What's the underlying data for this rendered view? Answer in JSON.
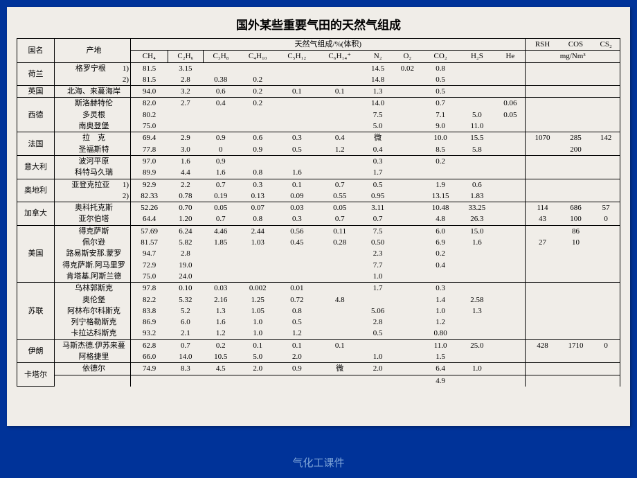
{
  "title": "国外某些重要气田的天然气组成",
  "footer": "气化工课件",
  "hdr": {
    "country": "国名",
    "field": "产地",
    "group": "天然气组成/%(体积)",
    "CH4": "CH₄",
    "C2H6": "C₂H₆",
    "C3H8": "C₃H₈",
    "C4H10": "C₄H₁₀",
    "C5H12": "C₅H₁₂",
    "C6H14": "C₆H₁₄⁺",
    "N2": "N₂",
    "O2": "O₂",
    "CO2": "CO₂",
    "H2S": "H₂S",
    "He": "He",
    "RSH": "RSH",
    "COS": "COS",
    "CS2": "CS₂",
    "mg": "mg/Nm³"
  },
  "rows": [
    {
      "country": "荷兰",
      "field": "格罗宁根",
      "note": "1)",
      "ch4": "81.5",
      "c2": "3.15",
      "c3": "",
      "c4": "",
      "c5": "",
      "c6": "",
      "n2": "14.5",
      "o2": "0.02",
      "co2": "0.8",
      "h2s": "",
      "he": "",
      "rsh": "",
      "cos": "",
      "cs2": ""
    },
    {
      "country": "",
      "field": "",
      "note": "2)",
      "ch4": "81.5",
      "c2": "2.8",
      "c3": "0.38",
      "c4": "0.2",
      "c5": "",
      "c6": "",
      "n2": "14.8",
      "o2": "",
      "co2": "0.5",
      "h2s": "",
      "he": "",
      "rsh": "",
      "cos": "",
      "cs2": "",
      "sep": true
    },
    {
      "country": "英国",
      "field": "北海、来蔓海岸",
      "ch4": "94.0",
      "c2": "3.2",
      "c3": "0.6",
      "c4": "0.2",
      "c5": "0.1",
      "c6": "0.1",
      "n2": "1.3",
      "o2": "",
      "co2": "0.5",
      "h2s": "",
      "he": "",
      "rsh": "",
      "cos": "",
      "cs2": "",
      "sep": true
    },
    {
      "country": "西德",
      "field": "斯洛赫特伦",
      "ch4": "82.0",
      "c2": "2.7",
      "c3": "0.4",
      "c4": "0.2",
      "c5": "",
      "c6": "",
      "n2": "14.0",
      "o2": "",
      "co2": "0.7",
      "h2s": "",
      "he": "0.06",
      "rsh": "",
      "cos": "",
      "cs2": ""
    },
    {
      "country": "",
      "field": "多灵根",
      "ch4": "80.2",
      "c2": "",
      "c3": "",
      "c4": "",
      "c5": "",
      "c6": "",
      "n2": "7.5",
      "o2": "",
      "co2": "7.1",
      "h2s": "5.0",
      "he": "0.05",
      "rsh": "",
      "cos": "",
      "cs2": ""
    },
    {
      "country": "",
      "field": "南奥登堡",
      "ch4": "75.0",
      "c2": "",
      "c3": "",
      "c4": "",
      "c5": "",
      "c6": "",
      "n2": "5.0",
      "o2": "",
      "co2": "9.0",
      "h2s": "11.0",
      "he": "",
      "rsh": "",
      "cos": "",
      "cs2": "",
      "sep": true
    },
    {
      "country": "法国",
      "field": "拉　克",
      "ch4": "69.4",
      "c2": "2.9",
      "c3": "0.9",
      "c4": "0.6",
      "c5": "0.3",
      "c6": "0.4",
      "n2": "微",
      "o2": "",
      "co2": "10.0",
      "h2s": "15.5",
      "he": "",
      "rsh": "1070",
      "cos": "285",
      "cs2": "142"
    },
    {
      "country": "",
      "field": "圣福斯特",
      "ch4": "77.8",
      "c2": "3.0",
      "c3": "0",
      "c4": "0.9",
      "c5": "0.5",
      "c6": "1.2",
      "n2": "0.4",
      "o2": "",
      "co2": "8.5",
      "h2s": "5.8",
      "he": "",
      "rsh": "",
      "cos": "200",
      "cs2": "",
      "sep": true
    },
    {
      "country": "意大利",
      "field": "波河平原",
      "ch4": "97.0",
      "c2": "1.6",
      "c3": "0.9",
      "c4": "",
      "c5": "",
      "c6": "",
      "n2": "0.3",
      "o2": "",
      "co2": "0.2",
      "h2s": "",
      "he": "",
      "rsh": "",
      "cos": "",
      "cs2": ""
    },
    {
      "country": "",
      "field": "科特马久瑞",
      "ch4": "89.9",
      "c2": "4.4",
      "c3": "1.6",
      "c4": "0.8",
      "c5": "1.6",
      "c6": "",
      "n2": "1.7",
      "o2": "",
      "co2": "",
      "h2s": "",
      "he": "",
      "rsh": "",
      "cos": "",
      "cs2": "",
      "sep": true
    },
    {
      "country": "奥地利",
      "field": "亚登克拉亚",
      "note": "1)",
      "ch4": "92.9",
      "c2": "2.2",
      "c3": "0.7",
      "c4": "0.3",
      "c5": "0.1",
      "c6": "0.7",
      "n2": "0.5",
      "o2": "",
      "co2": "1.9",
      "h2s": "0.6",
      "he": "",
      "rsh": "",
      "cos": "",
      "cs2": ""
    },
    {
      "country": "",
      "field": "",
      "note": "2)",
      "ch4": "82.33",
      "c2": "0.78",
      "c3": "0.19",
      "c4": "0.13",
      "c5": "0.09",
      "c6": "0.55",
      "n2": "0.95",
      "o2": "",
      "co2": "13.15",
      "h2s": "1.83",
      "he": "",
      "rsh": "",
      "cos": "",
      "cs2": "",
      "sep": true
    },
    {
      "country": "加拿大",
      "field": "奥科托克斯",
      "ch4": "52.26",
      "c2": "0.70",
      "c3": "0.05",
      "c4": "0.07",
      "c5": "0.03",
      "c6": "0.05",
      "n2": "3.11",
      "o2": "",
      "co2": "10.48",
      "h2s": "33.25",
      "he": "",
      "rsh": "114",
      "cos": "686",
      "cs2": "57"
    },
    {
      "country": "",
      "field": "亚尔伯塔",
      "ch4": "64.4",
      "c2": "1.20",
      "c3": "0.7",
      "c4": "0.8",
      "c5": "0.3",
      "c6": "0.7",
      "n2": "0.7",
      "o2": "",
      "co2": "4.8",
      "h2s": "26.3",
      "he": "",
      "rsh": "43",
      "cos": "100",
      "cs2": "0",
      "sep": true
    },
    {
      "country": "美国",
      "field": "得克萨斯",
      "ch4": "57.69",
      "c2": "6.24",
      "c3": "4.46",
      "c4": "2.44",
      "c5": "0.56",
      "c6": "0.11",
      "n2": "7.5",
      "o2": "",
      "co2": "6.0",
      "h2s": "15.0",
      "he": "",
      "rsh": "",
      "cos": "86",
      "cs2": ""
    },
    {
      "country": "",
      "field": "佩尔逊",
      "ch4": "81.57",
      "c2": "5.82",
      "c3": "1.85",
      "c4": "1.03",
      "c5": "0.45",
      "c6": "0.28",
      "n2": "0.50",
      "o2": "",
      "co2": "6.9",
      "h2s": "1.6",
      "he": "",
      "rsh": "27",
      "cos": "10",
      "cs2": ""
    },
    {
      "country": "",
      "field": "路易斯安那.蒙罗",
      "ch4": "94.7",
      "c2": "2.8",
      "c3": "",
      "c4": "",
      "c5": "",
      "c6": "",
      "n2": "2.3",
      "o2": "",
      "co2": "0.2",
      "h2s": "",
      "he": "",
      "rsh": "",
      "cos": "",
      "cs2": ""
    },
    {
      "country": "",
      "field": "得克萨斯.阿马里罗",
      "ch4": "72.9",
      "c2": "19.0",
      "c3": "",
      "c4": "",
      "c5": "",
      "c6": "",
      "n2": "7.7",
      "o2": "",
      "co2": "0.4",
      "h2s": "",
      "he": "",
      "rsh": "",
      "cos": "",
      "cs2": ""
    },
    {
      "country": "",
      "field": "肯塔基.阿斯兰德",
      "ch4": "75.0",
      "c2": "24.0",
      "c3": "",
      "c4": "",
      "c5": "",
      "c6": "",
      "n2": "1.0",
      "o2": "",
      "co2": "",
      "h2s": "",
      "he": "",
      "rsh": "",
      "cos": "",
      "cs2": "",
      "sep": true
    },
    {
      "country": "苏联",
      "field": "乌林郭斯克",
      "ch4": "97.8",
      "c2": "0.10",
      "c3": "0.03",
      "c4": "0.002",
      "c5": "0.01",
      "c6": "",
      "n2": "1.7",
      "o2": "",
      "co2": "0.3",
      "h2s": "",
      "he": "",
      "rsh": "",
      "cos": "",
      "cs2": ""
    },
    {
      "country": "",
      "field": "奥伦堡",
      "ch4": "82.2",
      "c2": "5.32",
      "c3": "2.16",
      "c4": "1.25",
      "c5": "0.72",
      "c6": "4.8",
      "n2": "",
      "o2": "",
      "co2": "1.4",
      "h2s": "2.58",
      "he": "",
      "rsh": "",
      "cos": "",
      "cs2": ""
    },
    {
      "country": "",
      "field": "阿林布尔科斯克",
      "ch4": "83.8",
      "c2": "5.2",
      "c3": "1.3",
      "c4": "1.05",
      "c5": "0.8",
      "c6": "",
      "n2": "5.06",
      "o2": "",
      "co2": "1.0",
      "h2s": "1.3",
      "he": "",
      "rsh": "",
      "cos": "",
      "cs2": ""
    },
    {
      "country": "",
      "field": "列宁格勒斯克",
      "ch4": "86.9",
      "c2": "6.0",
      "c3": "1.6",
      "c4": "1.0",
      "c5": "0.5",
      "c6": "",
      "n2": "2.8",
      "o2": "",
      "co2": "1.2",
      "h2s": "",
      "he": "",
      "rsh": "",
      "cos": "",
      "cs2": ""
    },
    {
      "country": "",
      "field": "卡拉达科斯克",
      "ch4": "93.2",
      "c2": "2.1",
      "c3": "1.2",
      "c4": "1.0",
      "c5": "1.2",
      "c6": "",
      "n2": "0.5",
      "o2": "",
      "co2": "0.80",
      "h2s": "",
      "he": "",
      "rsh": "",
      "cos": "",
      "cs2": "",
      "sep": true
    },
    {
      "country": "伊朗",
      "field": "马斯杰德.伊苏来蔓",
      "ch4": "62.8",
      "c2": "0.7",
      "c3": "0.2",
      "c4": "0.1",
      "c5": "0.1",
      "c6": "0.1",
      "n2": "",
      "o2": "",
      "co2": "11.0",
      "h2s": "25.0",
      "he": "",
      "rsh": "428",
      "cos": "1710",
      "cs2": "0"
    },
    {
      "country": "",
      "field": "阿格捷里",
      "ch4": "66.0",
      "c2": "14.0",
      "c3": "10.5",
      "c4": "5.0",
      "c5": "2.0",
      "c6": "",
      "n2": "1.0",
      "o2": "",
      "co2": "1.5",
      "h2s": "",
      "he": "",
      "rsh": "",
      "cos": "",
      "cs2": "",
      "sep": true
    },
    {
      "country": "卡塔尔",
      "field": "依德尔",
      "ch4": "74.9",
      "c2": "8.3",
      "c3": "4.5",
      "c4": "2.0",
      "c5": "0.9",
      "c6": "微",
      "n2": "2.0",
      "o2": "",
      "co2": "6.4",
      "h2s": "1.0",
      "he": "",
      "rsh": "",
      "cos": "",
      "cs2": "",
      "sep": true
    },
    {
      "country": "",
      "field": "",
      "ch4": "",
      "c2": "",
      "c3": "",
      "c4": "",
      "c5": "",
      "c6": "",
      "n2": "",
      "o2": "",
      "co2": "4.9",
      "h2s": "",
      "he": "",
      "rsh": "",
      "cos": "",
      "cs2": ""
    }
  ]
}
